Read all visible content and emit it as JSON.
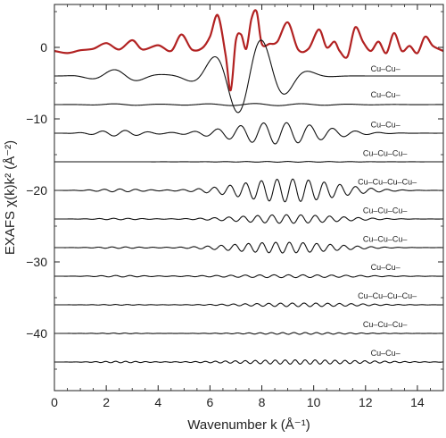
{
  "chart_data": {
    "type": "line",
    "xlabel": "Wavenumber k (Å⁻¹)",
    "ylabel": "EXAFS χ(k)k² (Å⁻²)",
    "xlim": [
      0,
      15
    ],
    "ylim": [
      -48,
      6
    ],
    "xticks": [
      0,
      2,
      4,
      6,
      8,
      10,
      12,
      14
    ],
    "yticks": [
      0,
      -10,
      -20,
      -30,
      -40
    ],
    "grid": false,
    "series": [
      {
        "label": "",
        "offset": 0,
        "color": "#b22222",
        "x": [
          0,
          0.5,
          1.0,
          1.5,
          2.0,
          2.5,
          3.0,
          3.4,
          4.0,
          4.5,
          4.9,
          5.3,
          5.7,
          6.0,
          6.3,
          6.6,
          6.8,
          7.0,
          7.2,
          7.4,
          7.6,
          7.8,
          8.0,
          8.3,
          8.6,
          9.0,
          9.4,
          9.8,
          10.2,
          10.5,
          10.8,
          11.0,
          11.3,
          11.6,
          11.9,
          12.2,
          12.5,
          12.8,
          13.1,
          13.4,
          13.7,
          14.0,
          14.3,
          14.6,
          15.0
        ],
        "y": [
          -0.5,
          -0.8,
          -0.4,
          -0.2,
          0.6,
          -0.3,
          1.0,
          -0.3,
          0.3,
          -0.5,
          1.8,
          -0.3,
          -0.1,
          1.5,
          4.5,
          -1.0,
          -6.0,
          1.0,
          1.8,
          -0.2,
          4.0,
          5.0,
          0.5,
          0.5,
          0.8,
          3.5,
          -0.3,
          -0.2,
          2.5,
          0.0,
          0.8,
          -0.5,
          -1.3,
          2.8,
          0.8,
          -0.5,
          0.8,
          -0.8,
          2.0,
          -0.5,
          0.2,
          -0.8,
          1.5,
          0.2,
          -0.5
        ]
      },
      {
        "label": "Cu–Cu–",
        "offset": -4,
        "amp": 5.5,
        "freq": 1.05,
        "phase": 0.3,
        "center": 7.5,
        "width": 1.6,
        "amp_low": 0.9,
        "label_x": 12.2,
        "label_y": -3.4
      },
      {
        "label": "Cu–Cu–",
        "offset": -8,
        "amp": 0.15,
        "freq": 1.1,
        "phase": 0.0,
        "center": 8.0,
        "width": 3.5,
        "amp_low": 0.1,
        "label_x": 12.2,
        "label_y": -7.0
      },
      {
        "label": "Cu–Cu–",
        "offset": -12,
        "amp": 1.5,
        "freq": 2.25,
        "phase": 1.1,
        "center": 8.6,
        "width": 2.4,
        "amp_low": 0.4,
        "label_x": 12.2,
        "label_y": -11.2
      },
      {
        "label": "Cu–Cu–Cu–",
        "offset": -16,
        "amp": 0.05,
        "freq": 2.5,
        "phase": 0.0,
        "center": 9.0,
        "width": 3.0,
        "amp_low": 0.0,
        "label_x": 11.9,
        "label_y": -15.2
      },
      {
        "label": "Cu–Cu–Cu–Cu–",
        "offset": -20,
        "amp": 1.6,
        "freq": 3.3,
        "phase": 0.5,
        "center": 9.0,
        "width": 2.5,
        "amp_low": 0.2,
        "label_x": 11.7,
        "label_y": -19.2
      },
      {
        "label": "Cu–Cu–Cu–",
        "offset": -24,
        "amp": 0.6,
        "freq": 3.6,
        "phase": 0.9,
        "center": 9.0,
        "width": 2.6,
        "amp_low": 0.1,
        "label_x": 11.9,
        "label_y": -23.2
      },
      {
        "label": "Cu–Cu–Cu–",
        "offset": -28,
        "amp": 0.75,
        "freq": 3.8,
        "phase": 0.2,
        "center": 8.8,
        "width": 2.6,
        "amp_low": 0.1,
        "label_x": 11.9,
        "label_y": -27.2
      },
      {
        "label": "Cu–Cu–",
        "offset": -32,
        "amp": 0.2,
        "freq": 3.6,
        "phase": 0.0,
        "center": 9.0,
        "width": 3.5,
        "amp_low": 0.1,
        "label_x": 12.2,
        "label_y": -31.1
      },
      {
        "label": "Cu–Cu–Cu–Cu–",
        "offset": -36,
        "amp": 0.25,
        "freq": 4.4,
        "phase": 0.4,
        "center": 9.5,
        "width": 3.0,
        "amp_low": 0.05,
        "label_x": 11.7,
        "label_y": -35.1
      },
      {
        "label": "Cu–Cu–Cu–",
        "offset": -40,
        "amp": 0.12,
        "freq": 4.6,
        "phase": 0.0,
        "center": 9.5,
        "width": 3.0,
        "amp_low": 0.05,
        "label_x": 11.9,
        "label_y": -39.1
      },
      {
        "label": "Cu–Cu–",
        "offset": -44,
        "amp": 0.3,
        "freq": 5.2,
        "phase": 0.7,
        "center": 9.5,
        "width": 3.4,
        "amp_low": 0.1,
        "label_x": 12.2,
        "label_y": -43.1
      }
    ]
  }
}
